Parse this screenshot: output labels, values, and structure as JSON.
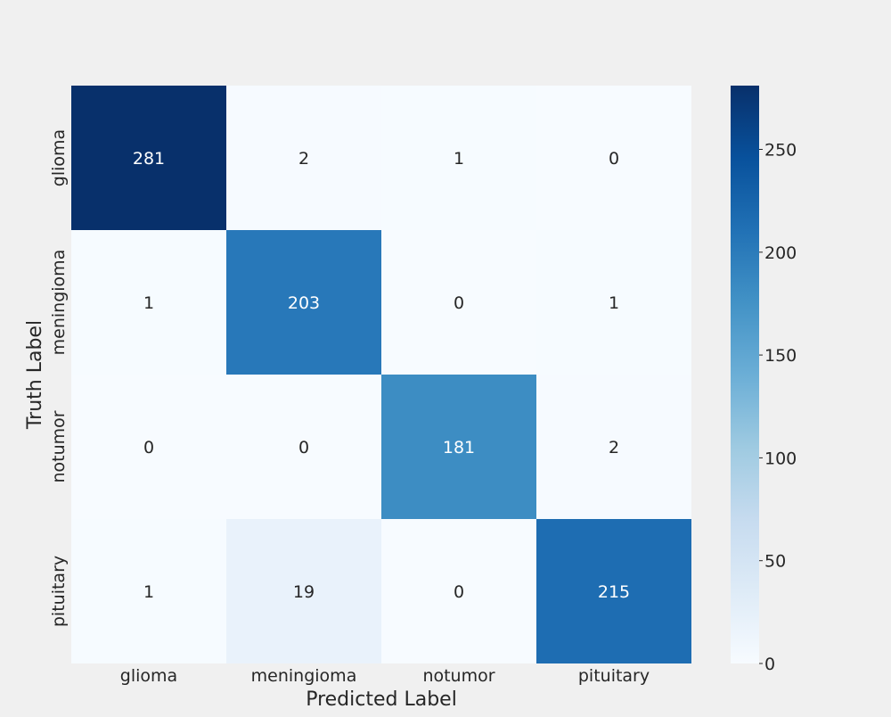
{
  "chart_data": {
    "type": "heatmap",
    "title": "",
    "xlabel": "Predicted Label",
    "ylabel": "Truth Label",
    "x_categories": [
      "glioma",
      "meningioma",
      "notumor",
      "pituitary"
    ],
    "y_categories": [
      "glioma",
      "meningioma",
      "notumor",
      "pituitary"
    ],
    "values": [
      [
        281,
        2,
        1,
        0
      ],
      [
        1,
        203,
        0,
        1
      ],
      [
        0,
        0,
        181,
        2
      ],
      [
        1,
        19,
        0,
        215
      ]
    ],
    "colormap": "Blues",
    "vmin": 0,
    "vmax": 281,
    "colorbar_ticks": [
      "0",
      "50",
      "100",
      "150",
      "200",
      "250"
    ],
    "annotations": true,
    "grid": false
  },
  "colors": {
    "background": "#f0f0f0",
    "text": "#262626",
    "annotation_light": "#ffffff",
    "annotation_dark": "#262626"
  }
}
